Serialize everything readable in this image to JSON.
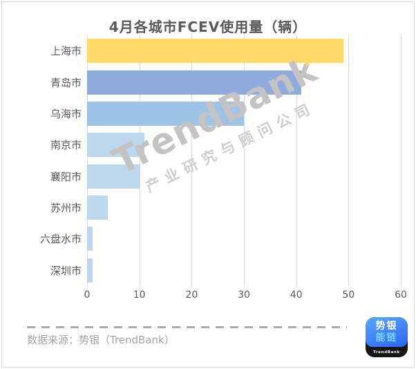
{
  "title": "4月各城市FCEV使用量（辆）",
  "chart_data": {
    "type": "bar",
    "orientation": "horizontal",
    "title": "4月各城市FCEV使用量（辆）",
    "categories": [
      "上海市",
      "青岛市",
      "乌海市",
      "南京市",
      "襄阳市",
      "苏州市",
      "六盘水市",
      "深圳市"
    ],
    "values": [
      49,
      41,
      30,
      11,
      10,
      4,
      1,
      1
    ],
    "bar_colors": [
      "#FFD966",
      "#8FAADC",
      "#9DC3E6",
      "#BDD7EE",
      "#BDD7EE",
      "#BDD7EE",
      "#BDD7EE",
      "#BDD7EE"
    ],
    "xlabel": "",
    "ylabel": "",
    "xlim": [
      0,
      60
    ],
    "xticks": [
      0,
      10,
      20,
      30,
      40,
      50,
      60
    ],
    "grid": "vertical-gridlines-on",
    "legend": "none"
  },
  "watermark": {
    "line1_main": "TrendBan",
    "line1_k": "k",
    "line2": "产业研究与顾问公司"
  },
  "footer": {
    "source_text": "数据来源：势银（TrendBank）"
  },
  "logo": {
    "line1": "势银",
    "line2": "能链",
    "caption": "TrendBank"
  },
  "colors": {
    "title_text": "#595959",
    "axis_text": "#595959",
    "category_text": "#595959",
    "gridline": "#D9D9D9",
    "frame_border": "#DADADA",
    "footer_text": "#A3A3A3",
    "dashed_line": "#ABABAB",
    "watermark_gray": "#C3C3C3",
    "watermark_accent_yellow": "#FFD966",
    "logo_blue_light": "#56A9FF",
    "logo_blue_dark": "#2E62F6",
    "logo_cyan": "#74D4FF",
    "logo_base_black": "#151515"
  }
}
